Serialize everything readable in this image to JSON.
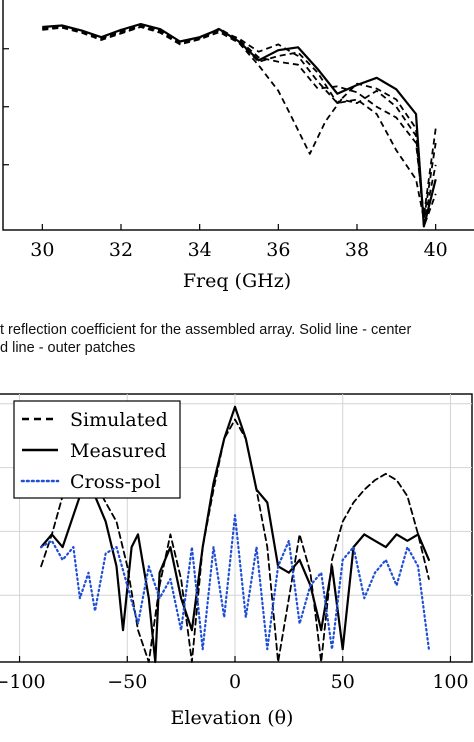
{
  "caption": {
    "line1": "t reflection coefficient for the assembled array. Solid line - center",
    "line2": "d line - outer patches"
  },
  "chart_data": [
    {
      "type": "line",
      "title": "",
      "xlabel": "Freq (GHz)",
      "ylabel": "",
      "xlim": [
        29,
        41
      ],
      "ylim": [
        -30,
        2
      ],
      "x_ticks": [
        "30",
        "32",
        "34",
        "36",
        "38",
        "40"
      ],
      "grid": false,
      "series": [
        {
          "style": "solid",
          "x": [
            30,
            30.5,
            31,
            31.5,
            32,
            32.5,
            33,
            33.5,
            34,
            34.5,
            35,
            35.5,
            36,
            36.5,
            37,
            37.5,
            38,
            38.5,
            39,
            39.5,
            39.7,
            40
          ],
          "y": [
            -2.0,
            -1.8,
            -2.5,
            -3.4,
            -2.4,
            -1.6,
            -2.3,
            -4.0,
            -3.4,
            -2.3,
            -4.0,
            -6.6,
            -5.2,
            -4.8,
            -7.8,
            -11.2,
            -10.0,
            -9.0,
            -10.6,
            -14.0,
            -29.5,
            -23.0
          ]
        },
        {
          "style": "dashed",
          "x": [
            30,
            30.5,
            31,
            31.5,
            32,
            32.5,
            33,
            33.5,
            34,
            34.5,
            35,
            35.5,
            36,
            36.3,
            36.8,
            37.2,
            37.6,
            38,
            38.5,
            39,
            39.5,
            39.7,
            40
          ],
          "y": [
            -2.4,
            -2.1,
            -2.8,
            -3.8,
            -2.9,
            -2.0,
            -2.8,
            -4.4,
            -3.7,
            -2.7,
            -4.2,
            -7.3,
            -10.8,
            -14.0,
            -19.5,
            -15.0,
            -12.0,
            -12.5,
            -10.8,
            -13.0,
            -17.0,
            -29.0,
            -21.0
          ]
        },
        {
          "style": "dashed",
          "x": [
            30,
            30.5,
            31,
            31.5,
            32,
            32.5,
            33,
            33.5,
            34,
            34.5,
            35,
            35.5,
            36,
            36.5,
            37,
            37.5,
            38,
            38.5,
            39,
            39.5,
            39.7,
            40
          ],
          "y": [
            -2.2,
            -2.0,
            -2.6,
            -3.5,
            -2.6,
            -1.8,
            -2.5,
            -4.2,
            -3.6,
            -2.4,
            -4.1,
            -6.8,
            -6.0,
            -5.5,
            -8.3,
            -12.5,
            -9.8,
            -10.5,
            -12.0,
            -16.0,
            -29.5,
            -25.0
          ]
        },
        {
          "style": "dashed",
          "x": [
            30,
            30.5,
            31,
            31.5,
            32,
            32.5,
            33,
            33.5,
            34,
            34.5,
            35,
            35.5,
            36,
            36.5,
            37,
            37.5,
            38,
            38.5,
            39,
            39.5,
            39.7,
            40
          ],
          "y": [
            -2.3,
            -2.0,
            -2.7,
            -3.6,
            -2.8,
            -1.9,
            -2.6,
            -4.3,
            -3.4,
            -2.5,
            -3.6,
            -5.4,
            -4.4,
            -6.0,
            -9.5,
            -12.5,
            -12.0,
            -14.0,
            -19.0,
            -23.0,
            -28.5,
            -18.0
          ]
        },
        {
          "style": "dashed",
          "x": [
            30,
            30.5,
            31,
            31.5,
            32,
            32.5,
            33,
            33.5,
            34,
            34.5,
            35,
            35.5,
            36,
            36.5,
            37,
            37.5,
            38,
            38.5,
            39,
            39.5,
            39.7,
            40
          ],
          "y": [
            -2.1,
            -1.9,
            -2.5,
            -3.5,
            -2.7,
            -1.9,
            -2.6,
            -4.0,
            -3.5,
            -2.2,
            -3.8,
            -6.2,
            -6.8,
            -7.2,
            -10.5,
            -10.2,
            -11.0,
            -13.0,
            -14.5,
            -18.0,
            -28.0,
            -16.0
          ]
        }
      ]
    },
    {
      "type": "line",
      "title": "",
      "xlabel": "Elevation (θ)",
      "ylabel": "",
      "xlim": [
        -110,
        110
      ],
      "ylim": [
        -40,
        2
      ],
      "x_ticks": [
        "−100",
        "−50",
        "0",
        "50",
        "100"
      ],
      "grid": true,
      "legend": "top-left",
      "series": [
        {
          "name": "Simulated",
          "style": "dashed",
          "x": [
            -90,
            -85,
            -80,
            -75,
            -70,
            -65,
            -60,
            -55,
            -50,
            -45,
            -40,
            -35,
            -30,
            -25,
            -20,
            -15,
            -10,
            -5,
            0,
            5,
            10,
            15,
            20,
            25,
            30,
            35,
            40,
            45,
            50,
            55,
            60,
            65,
            70,
            75,
            80,
            85,
            90
          ],
          "y": [
            -25,
            -20,
            -14,
            -12,
            -11,
            -12,
            -15,
            -18,
            -25,
            -35,
            -40,
            -28,
            -20,
            -27,
            -40,
            -22,
            -13,
            -5,
            -2,
            -5,
            -13,
            -22,
            -40,
            -30,
            -20,
            -26,
            -40,
            -24,
            -18,
            -15,
            -13,
            -11.5,
            -10.5,
            -11.5,
            -14,
            -20,
            -27
          ]
        },
        {
          "name": "Measured",
          "style": "solid",
          "x": [
            -90,
            -85,
            -80,
            -75,
            -70,
            -65,
            -60,
            -55,
            -52,
            -48,
            -45,
            -40,
            -37,
            -35,
            -30,
            -25,
            -20,
            -15,
            -10,
            -5,
            0,
            5,
            10,
            15,
            20,
            25,
            30,
            35,
            40,
            45,
            50,
            55,
            60,
            65,
            70,
            75,
            80,
            85,
            90
          ],
          "y": [
            -22,
            -20,
            -22,
            -17,
            -12,
            -14,
            -18,
            -25,
            -35,
            -22,
            -20,
            -30,
            -40,
            -26,
            -22,
            -30,
            -35,
            -22,
            -12,
            -5,
            0,
            -5,
            -13,
            -15,
            -25,
            -26,
            -24,
            -28,
            -35,
            -25,
            -38,
            -22,
            -20,
            -21,
            -22,
            -20,
            -21,
            -20,
            -24
          ]
        },
        {
          "name": "Cross-pol",
          "style": "dotted",
          "x": [
            -90,
            -85,
            -80,
            -75,
            -72,
            -68,
            -65,
            -60,
            -55,
            -50,
            -45,
            -40,
            -35,
            -30,
            -25,
            -20,
            -15,
            -10,
            -5,
            0,
            5,
            10,
            15,
            20,
            25,
            30,
            35,
            40,
            45,
            50,
            55,
            60,
            65,
            70,
            75,
            80,
            85,
            90
          ],
          "y": [
            -22,
            -21,
            -24,
            -22,
            -30,
            -26,
            -32,
            -23,
            -22,
            -28,
            -34,
            -25,
            -30,
            -27,
            -35,
            -22,
            -38,
            -22,
            -33,
            -17,
            -33,
            -22,
            -38,
            -25,
            -21,
            -34,
            -28,
            -26,
            -38,
            -24,
            -22,
            -30,
            -26,
            -24,
            -28,
            -22,
            -25,
            -38
          ]
        }
      ]
    }
  ]
}
